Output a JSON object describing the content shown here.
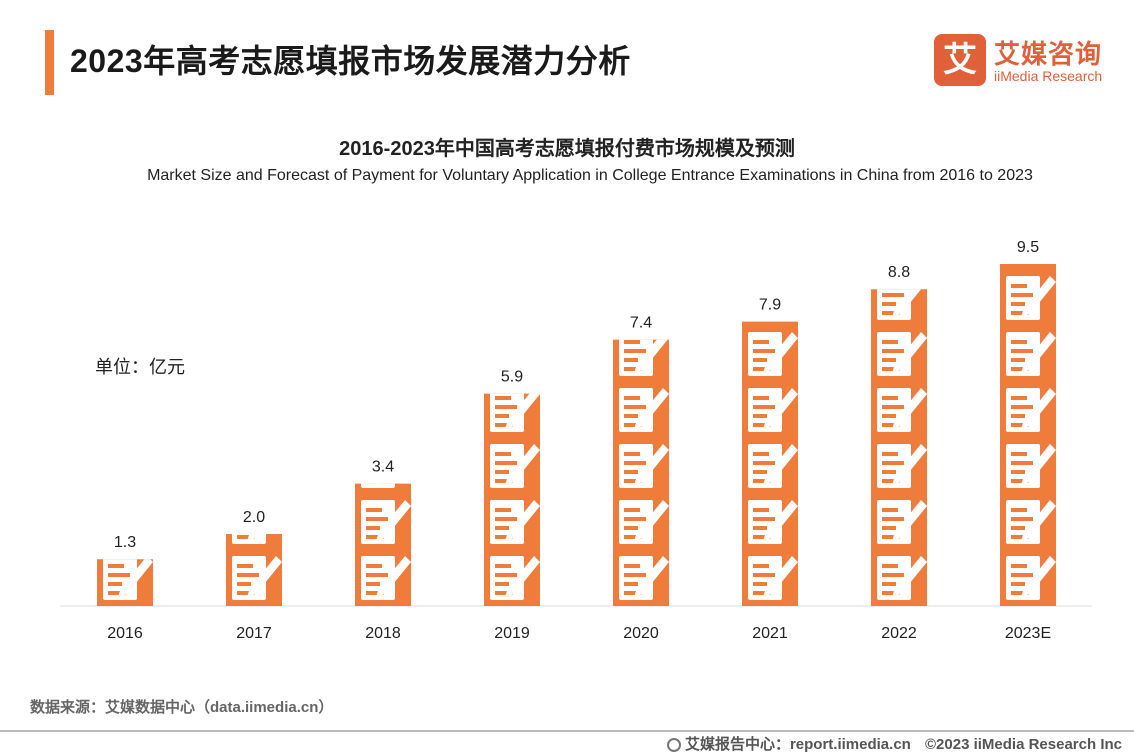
{
  "header": {
    "title": "2023年高考志愿填报市场发展潜力分析"
  },
  "logo": {
    "mark": "艾",
    "name_cn": "艾媒咨询",
    "name_en": "iiMedia Research"
  },
  "chart_data": {
    "type": "bar",
    "title": "2016-2023年中国高考志愿填报付费市场规模及预测",
    "subtitle": "Market Size and Forecast of Payment for Voluntary Application in College Entrance Examinations in China from 2016 to 2023",
    "unit_label": "单位：亿元",
    "categories": [
      "2016",
      "2017",
      "2018",
      "2019",
      "2020",
      "2021",
      "2022",
      "2023E"
    ],
    "values": [
      1.3,
      2.0,
      3.4,
      5.9,
      7.4,
      7.9,
      8.8,
      9.5
    ],
    "value_labels": [
      "1.3",
      "2.0",
      "3.4",
      "5.9",
      "7.4",
      "7.9",
      "8.8",
      "9.5"
    ],
    "ylim": [
      0,
      10
    ],
    "xlabel": "",
    "ylabel": "",
    "grid": false,
    "bar_color": "#f07c3c"
  },
  "source": "数据来源：艾媒数据中心（data.iimedia.cn）",
  "footer": {
    "report_center": "艾媒报告中心：report.iimedia.cn",
    "copyright": "©2023 iiMedia Research Inc"
  }
}
